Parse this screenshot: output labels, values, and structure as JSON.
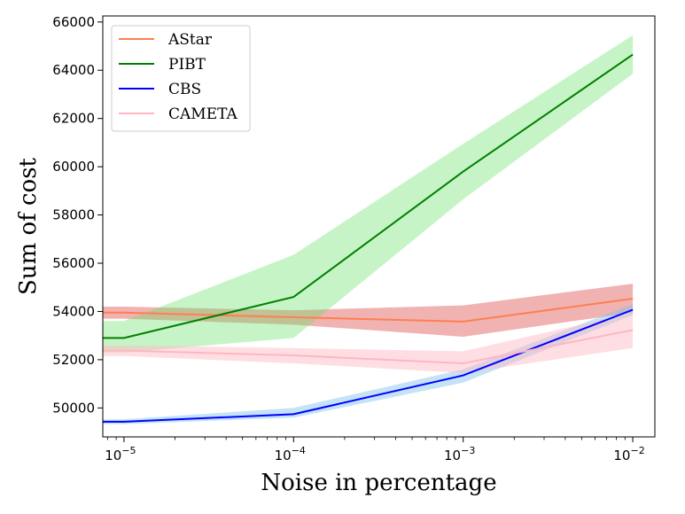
{
  "chart_data": {
    "type": "line",
    "title": "",
    "xlabel": "Noise in percentage",
    "ylabel": "Sum of cost",
    "xscale": "log",
    "x": [
      1e-05,
      0.0001,
      0.001,
      0.01
    ],
    "xlim": [
      7.5e-06,
      0.0135
    ],
    "ylim": [
      48800,
      66250
    ],
    "x_ticks": [
      {
        "value": 1e-05,
        "base": "10",
        "exp": "−5"
      },
      {
        "value": 0.0001,
        "base": "10",
        "exp": "−4"
      },
      {
        "value": 0.001,
        "base": "10",
        "exp": "−3"
      },
      {
        "value": 0.01,
        "base": "10",
        "exp": "−2"
      }
    ],
    "y_ticks": [
      {
        "value": 50000,
        "label": "50000"
      },
      {
        "value": 52000,
        "label": "52000"
      },
      {
        "value": 54000,
        "label": "54000"
      },
      {
        "value": 56000,
        "label": "56000"
      },
      {
        "value": 58000,
        "label": "58000"
      },
      {
        "value": 60000,
        "label": "60000"
      },
      {
        "value": 62000,
        "label": "62000"
      },
      {
        "value": 64000,
        "label": "64000"
      },
      {
        "value": 66000,
        "label": "66000"
      }
    ],
    "legend_position": "top-left",
    "series": [
      {
        "name": "AStar",
        "color": "#ff7f50",
        "band_color": "#e05555",
        "band_opacity": 0.45,
        "x_start": 7.5e-06,
        "values": [
          53950,
          53760,
          53580,
          54530
        ],
        "lower": [
          53700,
          53450,
          52950,
          53950
        ],
        "upper": [
          54200,
          54050,
          54250,
          55150
        ]
      },
      {
        "name": "PIBT",
        "color": "#008000",
        "band_color": "#5fe05f",
        "band_opacity": 0.35,
        "x_start": 7.5e-06,
        "values": [
          52900,
          54600,
          59800,
          64650
        ],
        "lower": [
          52300,
          52900,
          58650,
          63850
        ],
        "upper": [
          53600,
          56350,
          60950,
          65450
        ]
      },
      {
        "name": "CBS",
        "color": "#0000ff",
        "band_color": "#7ec0ee",
        "band_opacity": 0.45,
        "x_start": 7.5e-06,
        "values": [
          49430,
          49740,
          51350,
          54070
        ],
        "lower": [
          49330,
          49600,
          51050,
          53850
        ],
        "upper": [
          49530,
          50000,
          51600,
          54300
        ]
      },
      {
        "name": "CAMETA",
        "color": "#ffb6c1",
        "band_color": "#ffb6c1",
        "band_opacity": 0.45,
        "x_start": 7.5e-06,
        "values": [
          52380,
          52180,
          51850,
          53230
        ],
        "lower": [
          52150,
          51850,
          51450,
          52480
        ],
        "upper": [
          52600,
          52480,
          52350,
          53950
        ]
      }
    ]
  }
}
